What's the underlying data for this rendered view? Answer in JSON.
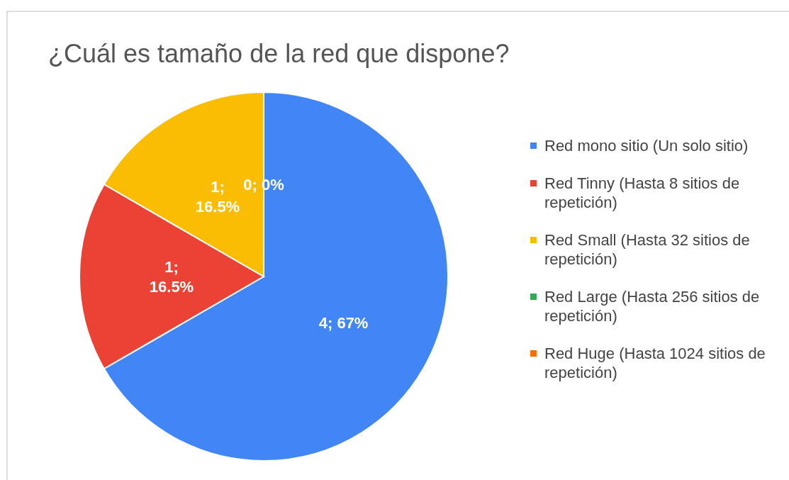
{
  "chart_data": {
    "type": "pie",
    "title": "¿Cuál es tamaño de la red que dispone?",
    "categories": [
      "Red mono sitio (Un solo sitio)",
      "Red Tinny (Hasta 8 sitios de repetición)",
      "Red Small (Hasta 32 sitios de repetición)",
      "Red Large (Hasta 256 sitios de repetición)",
      "Red Huge (Hasta 1024 sitios de repetición)"
    ],
    "values": [
      4,
      1,
      1,
      0,
      0
    ],
    "colors": [
      "#4285f4",
      "#ea4335",
      "#fbbc04",
      "#34a853",
      "#ff6d01"
    ],
    "value_labels": [
      "4; 67%",
      "1; 16.5%",
      "1; 16.5%",
      "0; 0%",
      null
    ],
    "legend": "right"
  }
}
